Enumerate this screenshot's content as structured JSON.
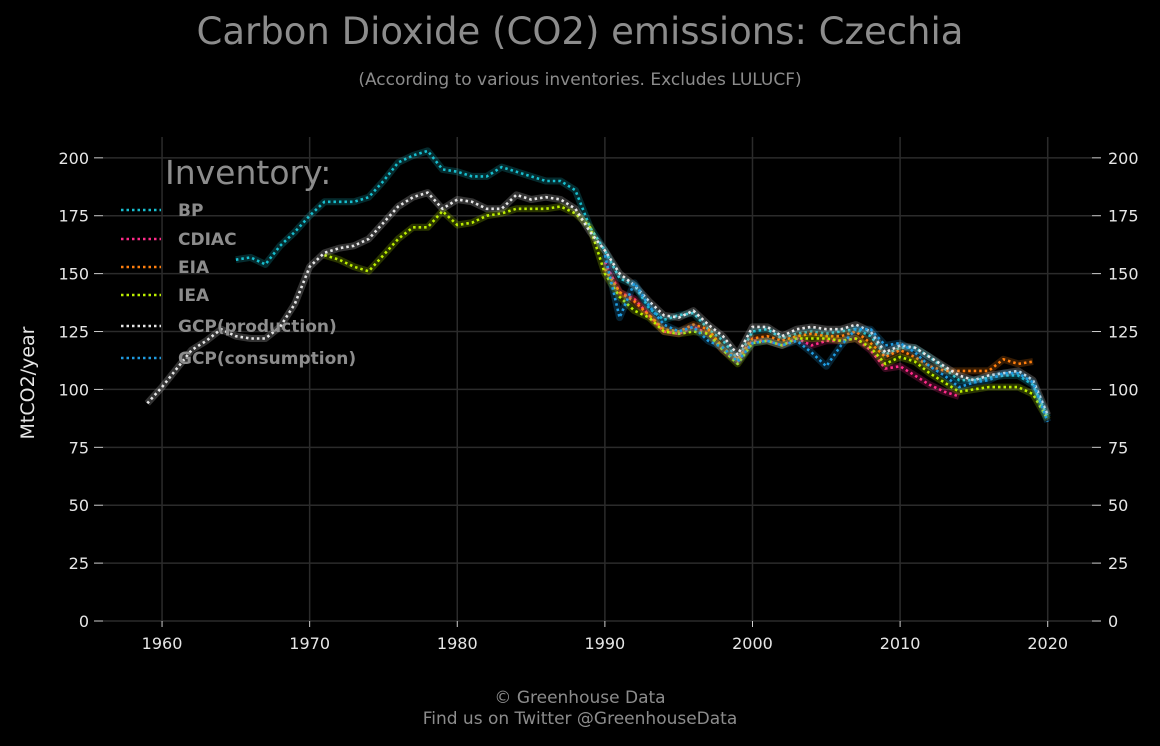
{
  "title": "Carbon Dioxide (CO2) emissions: Czechia",
  "subtitle": "(According to various inventories. Excludes LULUCF)",
  "footer": {
    "line1": "© Greenhouse Data",
    "line2": "Find us on Twitter @GreenhouseData"
  },
  "chart_data": {
    "type": "line",
    "title": "Carbon Dioxide (CO2) emissions: Czechia",
    "subtitle": "(According to various inventories. Excludes LULUCF)",
    "ylabel": "MtCO2/year",
    "xlabel": "",
    "xlim": [
      1956,
      2023
    ],
    "ylim": [
      0,
      209
    ],
    "x_ticks": [
      1960,
      1970,
      1980,
      1990,
      2000,
      2010,
      2020
    ],
    "y_ticks": [
      0,
      25,
      50,
      75,
      100,
      125,
      150,
      175,
      200
    ],
    "grid": true,
    "legend": {
      "title": "Inventory:",
      "position": "top-left"
    },
    "series": [
      {
        "name": "BP",
        "color": "#17becf",
        "x": [
          1965,
          1966,
          1967,
          1968,
          1969,
          1970,
          1971,
          1972,
          1973,
          1974,
          1975,
          1976,
          1977,
          1978,
          1979,
          1980,
          1981,
          1982,
          1983,
          1984,
          1985,
          1986,
          1987,
          1988,
          1989,
          1990,
          1991,
          1992,
          1993,
          1994,
          1995,
          1996,
          1997,
          1998,
          1999,
          2000,
          2001,
          2002,
          2003,
          2004,
          2005,
          2006,
          2007,
          2008,
          2009,
          2010,
          2011,
          2012,
          2013,
          2014,
          2015,
          2016,
          2017,
          2018,
          2019,
          2020
        ],
        "y": [
          156,
          157,
          154,
          162,
          168,
          175,
          181,
          181,
          181,
          183,
          190,
          198,
          201,
          203,
          195,
          194,
          192,
          192,
          196,
          194,
          192,
          190,
          190,
          186,
          170,
          160,
          148,
          145,
          135,
          130,
          132,
          133,
          126,
          121,
          113,
          125,
          126,
          122,
          124,
          125,
          124,
          125,
          126,
          123,
          115,
          118,
          118,
          114,
          109,
          104,
          104,
          105,
          106,
          106,
          102,
          88
        ]
      },
      {
        "name": "CDIAC",
        "color": "#ff2b8a",
        "x": [
          1990,
          1991,
          1992,
          1993,
          1994,
          1995,
          1996,
          1997,
          1998,
          1999,
          2000,
          2001,
          2002,
          2003,
          2004,
          2005,
          2006,
          2007,
          2008,
          2009,
          2010,
          2011,
          2012,
          2013,
          2014
        ],
        "y": [
          155,
          142,
          139,
          132,
          125,
          124,
          127,
          124,
          117,
          112,
          121,
          121,
          119,
          122,
          119,
          121,
          121,
          122,
          117,
          109,
          110,
          106,
          102,
          99,
          97
        ]
      },
      {
        "name": "EIA",
        "color": "#ff7f0e",
        "x": [
          1990,
          1991,
          1992,
          1993,
          1994,
          1995,
          1996,
          1997,
          1998,
          1999,
          2000,
          2001,
          2002,
          2003,
          2004,
          2005,
          2006,
          2007,
          2008,
          2009,
          2010,
          2011,
          2012,
          2013,
          2014,
          2015,
          2016,
          2017,
          2018,
          2019
        ],
        "y": [
          152,
          142,
          138,
          132,
          126,
          125,
          128,
          126,
          118,
          113,
          122,
          123,
          121,
          123,
          124,
          123,
          123,
          125,
          120,
          114,
          117,
          114,
          110,
          108,
          108,
          108,
          108,
          113,
          111,
          112
        ]
      },
      {
        "name": "IEA",
        "color": "#bcee00",
        "x": [
          1971,
          1972,
          1973,
          1974,
          1975,
          1976,
          1977,
          1978,
          1979,
          1980,
          1981,
          1982,
          1983,
          1984,
          1985,
          1986,
          1987,
          1988,
          1989,
          1990,
          1991,
          1992,
          1993,
          1994,
          1995,
          1996,
          1997,
          1998,
          1999,
          2000,
          2001,
          2002,
          2003,
          2004,
          2005,
          2006,
          2007,
          2008,
          2009,
          2010,
          2011,
          2012,
          2013,
          2014,
          2015,
          2016,
          2017,
          2018,
          2019,
          2020
        ],
        "y": [
          158,
          156,
          153,
          151,
          158,
          165,
          170,
          170,
          177,
          171,
          172,
          175,
          176,
          178,
          178,
          178,
          179,
          176,
          170,
          150,
          140,
          134,
          131,
          125,
          124,
          125,
          124,
          117,
          111,
          120,
          121,
          119,
          122,
          122,
          122,
          121,
          122,
          118,
          111,
          114,
          112,
          107,
          103,
          99,
          100,
          101,
          101,
          101,
          98,
          87
        ]
      },
      {
        "name": "GCP(production)",
        "color": "#e6e6e6",
        "x": [
          1959,
          1960,
          1961,
          1962,
          1963,
          1964,
          1965,
          1966,
          1967,
          1968,
          1969,
          1970,
          1971,
          1972,
          1973,
          1974,
          1975,
          1976,
          1977,
          1978,
          1979,
          1980,
          1981,
          1982,
          1983,
          1984,
          1985,
          1986,
          1987,
          1988,
          1989,
          1990,
          1991,
          1992,
          1993,
          1994,
          1995,
          1996,
          1997,
          1998,
          1999,
          2000,
          2001,
          2002,
          2003,
          2004,
          2005,
          2006,
          2007,
          2008,
          2009,
          2010,
          2011,
          2012,
          2013,
          2014,
          2015,
          2016,
          2017,
          2018,
          2019,
          2020
        ],
        "y": [
          94,
          101,
          109,
          117,
          121,
          126,
          123,
          122,
          122,
          127,
          137,
          153,
          159,
          161,
          162,
          165,
          172,
          179,
          183,
          185,
          178,
          182,
          181,
          178,
          178,
          184,
          182,
          183,
          182,
          178,
          168,
          160,
          150,
          145,
          138,
          132,
          131,
          134,
          128,
          123,
          115,
          127,
          127,
          123,
          126,
          127,
          126,
          126,
          128,
          125,
          116,
          119,
          118,
          114,
          110,
          106,
          104,
          106,
          107,
          108,
          104,
          89
        ]
      },
      {
        "name": "GCP(consumption)",
        "color": "#1f9be0",
        "x": [
          1990,
          1991,
          1992,
          1993,
          1994,
          1995,
          1996,
          1997,
          1998,
          1999,
          2000,
          2001,
          2002,
          2003,
          2004,
          2005,
          2006,
          2007,
          2008,
          2009,
          2010,
          2011,
          2012,
          2013,
          2014,
          2015,
          2016,
          2017,
          2018,
          2019,
          2020
        ],
        "y": [
          158,
          131,
          146,
          136,
          128,
          125,
          127,
          121,
          118,
          112,
          120,
          121,
          119,
          121,
          116,
          110,
          119,
          126,
          126,
          119,
          120,
          116,
          110,
          106,
          101,
          103,
          104,
          107,
          107,
          103,
          86
        ]
      }
    ]
  }
}
